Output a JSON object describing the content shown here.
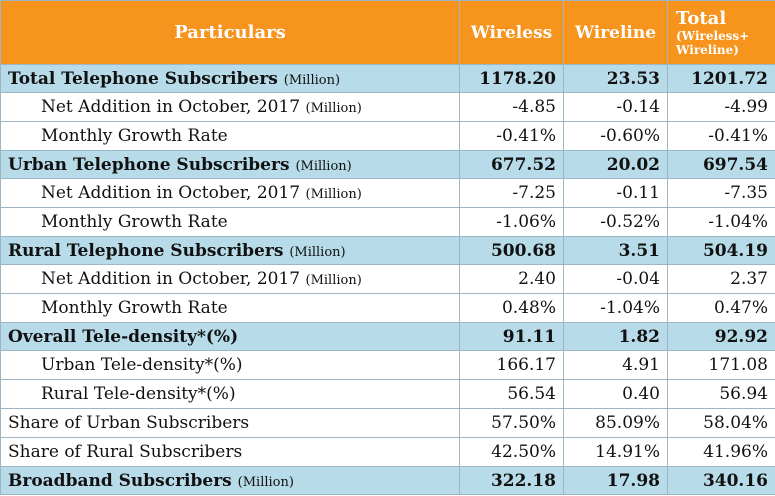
{
  "header": {
    "particulars": "Particulars",
    "wireless": "Wireless",
    "wireline": "Wireline",
    "total": "Total",
    "total_sub_1": "(Wireless+",
    "total_sub_2": "Wireline)"
  },
  "rows": [
    {
      "label": "Total Telephone Subscribers",
      "unit": "(Million)",
      "wireless": "1178.20",
      "wireline": "23.53",
      "total": "1201.72"
    },
    {
      "label": "Net Addition in October, 2017",
      "unit": "(Million)",
      "wireless": "-4.85",
      "wireline": "-0.14",
      "total": "-4.99"
    },
    {
      "label": "Monthly Growth Rate",
      "wireless": "-0.41%",
      "wireline": "-0.60%",
      "total": "-0.41%"
    },
    {
      "label": "Urban Telephone Subscribers",
      "unit": "(Million)",
      "wireless": "677.52",
      "wireline": "20.02",
      "total": "697.54"
    },
    {
      "label": "Net Addition in October, 2017",
      "unit": "(Million)",
      "wireless": "-7.25",
      "wireline": "-0.11",
      "total": "-7.35"
    },
    {
      "label": "Monthly Growth Rate",
      "wireless": "-1.06%",
      "wireline": "-0.52%",
      "total": "-1.04%"
    },
    {
      "label": "Rural Telephone Subscribers",
      "unit": "(Million)",
      "wireless": "500.68",
      "wireline": "3.51",
      "total": "504.19"
    },
    {
      "label": "Net Addition in October, 2017",
      "unit": "(Million)",
      "wireless": "2.40",
      "wireline": "-0.04",
      "total": "2.37"
    },
    {
      "label": "Monthly Growth Rate",
      "wireless": "0.48%",
      "wireline": "-1.04%",
      "total": "0.47%"
    },
    {
      "label": "Overall Tele-density*(%)",
      "wireless": "91.11",
      "wireline": "1.82",
      "total": "92.92"
    },
    {
      "label": "Urban Tele-density*(%)",
      "wireless": "166.17",
      "wireline": "4.91",
      "total": "171.08"
    },
    {
      "label": "Rural Tele-density*(%)",
      "wireless": "56.54",
      "wireline": "0.40",
      "total": "56.94"
    },
    {
      "label": "Share of Urban Subscribers",
      "wireless": "57.50%",
      "wireline": "85.09%",
      "total": "58.04%"
    },
    {
      "label": "Share of Rural Subscribers",
      "wireless": "42.50%",
      "wireline": "14.91%",
      "total": "41.96%"
    },
    {
      "label": "Broadband Subscribers",
      "unit": "(Million)",
      "wireless": "322.18",
      "wireline": "17.98",
      "total": "340.16"
    }
  ],
  "colors": {
    "header_bg": "#f7941d",
    "summary_bg": "#b7dbe8",
    "border": "#9cb6c6"
  }
}
